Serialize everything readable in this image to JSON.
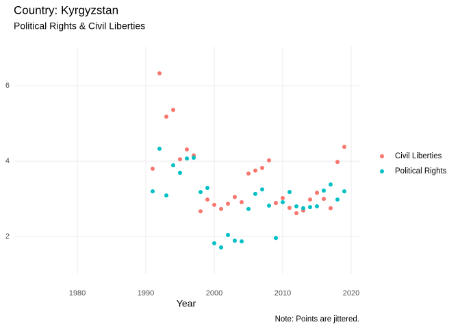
{
  "chart_data": {
    "type": "scatter",
    "title": "Country: Kyrgyzstan",
    "subtitle": "Political Rights & Civil Liberties",
    "x_label": "Year",
    "caption": "Note: Points are jittered.",
    "x": [
      1991,
      1992,
      1993,
      1994,
      1995,
      1996,
      1997,
      1998,
      1999,
      2000,
      2001,
      2002,
      2003,
      2004,
      2005,
      2006,
      2007,
      2008,
      2009,
      2010,
      2011,
      2012,
      2013,
      2014,
      2015,
      2016,
      2017,
      2018,
      2019
    ],
    "series": [
      {
        "name": "Civil Liberties",
        "color": "#F8766D",
        "values": [
          3.8,
          6.33,
          5.18,
          5.36,
          4.05,
          4.31,
          4.15,
          2.67,
          2.98,
          2.84,
          2.73,
          2.87,
          3.05,
          2.91,
          3.67,
          3.75,
          3.82,
          4.02,
          2.89,
          3.02,
          2.76,
          2.62,
          2.69,
          2.98,
          3.16,
          3.0,
          2.75,
          3.98,
          4.38
        ]
      },
      {
        "name": "Political Rights",
        "color": "#00BFC4",
        "values": [
          3.2,
          4.33,
          3.09,
          3.89,
          3.69,
          4.07,
          4.09,
          3.18,
          3.29,
          1.82,
          1.71,
          2.04,
          1.89,
          1.87,
          2.73,
          3.13,
          3.25,
          2.82,
          1.96,
          2.91,
          3.18,
          2.8,
          2.75,
          2.78,
          2.8,
          3.22,
          3.38,
          2.98,
          3.2
        ]
      }
    ],
    "xlim": [
      1970.9,
      2021.2
    ],
    "xticks": [
      1980,
      1990,
      2000,
      2010,
      2020
    ],
    "ylim": [
      1.0,
      7.04
    ],
    "yticks": [
      2,
      4,
      6
    ],
    "grid": true,
    "legend": "right"
  }
}
